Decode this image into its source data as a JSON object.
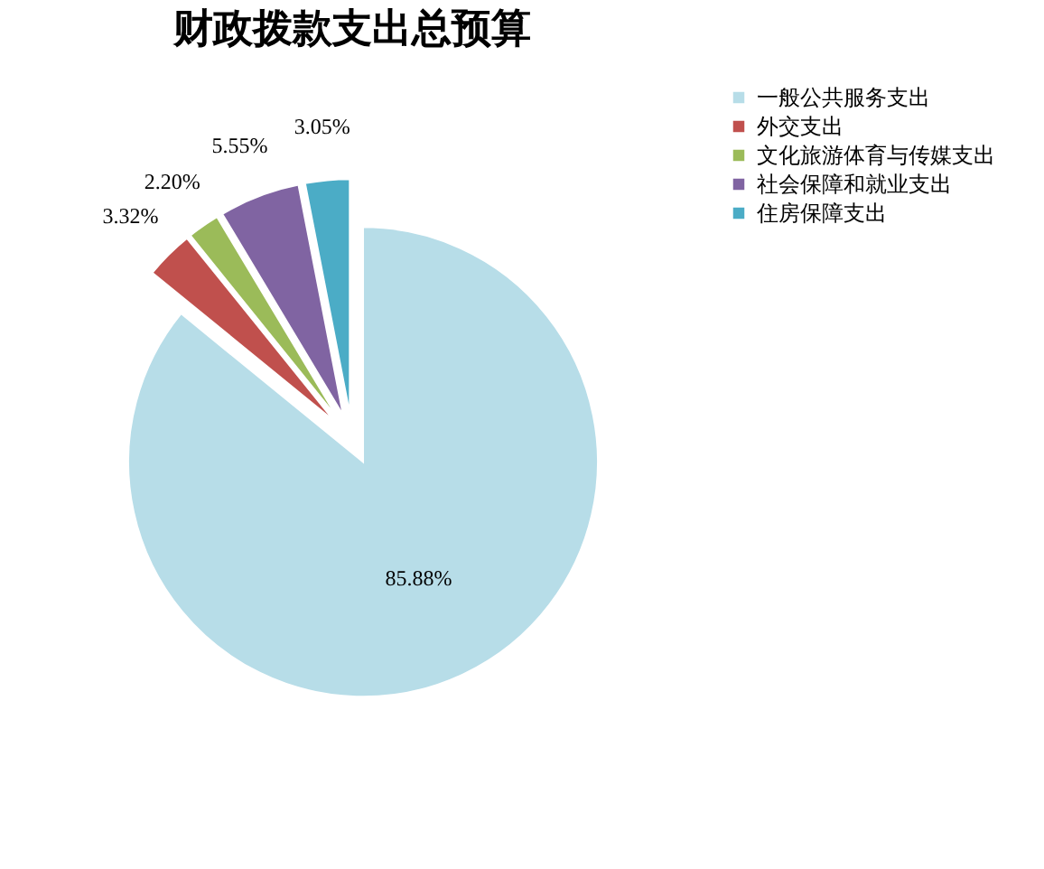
{
  "chart_data": {
    "type": "pie",
    "title": "财政拨款支出总预算",
    "categories": [
      "一般公共服务支出",
      "外交支出",
      "文化旅游体育与传媒支出",
      "社会保障和就业支出",
      "住房保障支出"
    ],
    "values": [
      85.88,
      3.32,
      2.2,
      5.55,
      3.05
    ],
    "colors": [
      "#b7dde8",
      "#c0504d",
      "#9bbb59",
      "#8064a2",
      "#4bacc6"
    ],
    "value_labels": [
      "85.88%",
      "3.32%",
      "2.20%",
      "5.55%",
      "3.05%"
    ],
    "legend": "right"
  }
}
